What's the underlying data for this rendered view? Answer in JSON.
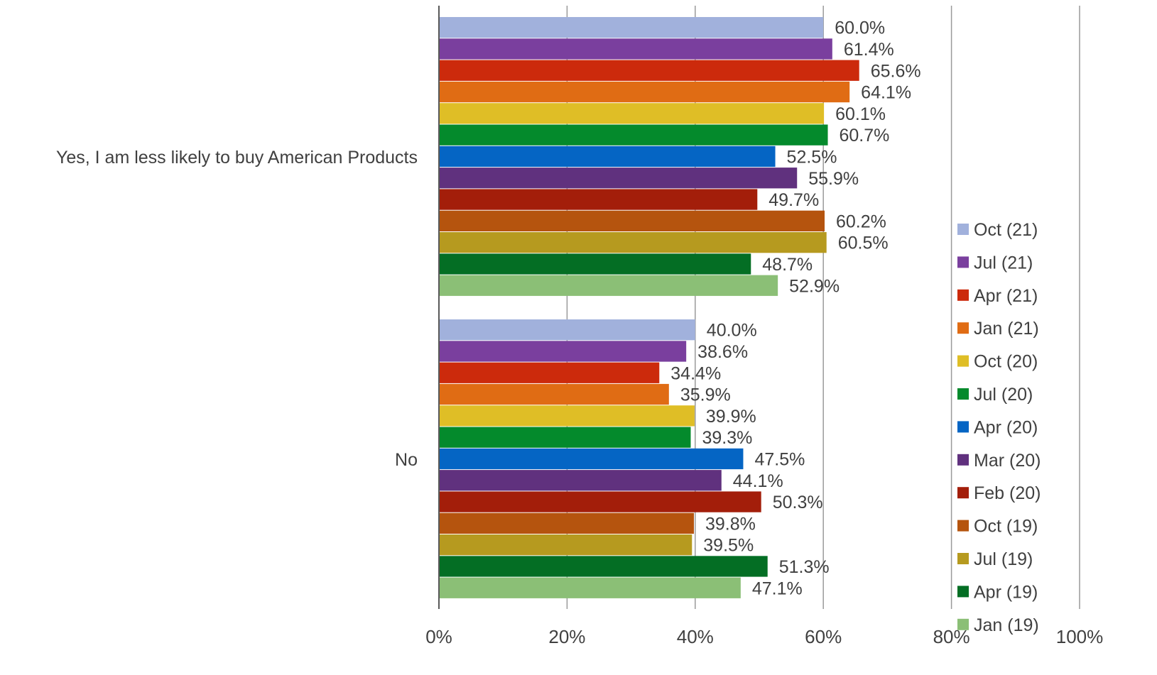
{
  "chart_data": {
    "type": "bar",
    "orientation": "horizontal",
    "categories": [
      "Yes, I am less likely to buy American Products",
      "No"
    ],
    "series": [
      {
        "name": "Oct (21)",
        "color": "#a1b1dc",
        "values": [
          60.0,
          40.0
        ],
        "labels": [
          "60.0%",
          "40.0%"
        ]
      },
      {
        "name": "Jul (21)",
        "color": "#7a3f9e",
        "values": [
          61.4,
          38.6
        ],
        "labels": [
          "61.4%",
          "38.6%"
        ]
      },
      {
        "name": "Apr (21)",
        "color": "#cc2a0c",
        "values": [
          65.6,
          34.4
        ],
        "labels": [
          "65.6%",
          "34.4%"
        ]
      },
      {
        "name": "Jan (21)",
        "color": "#e06c14",
        "values": [
          64.1,
          35.9
        ],
        "labels": [
          "64.1%",
          "35.9%"
        ]
      },
      {
        "name": "Oct (20)",
        "color": "#dfbe26",
        "values": [
          60.1,
          39.9
        ],
        "labels": [
          "60.1%",
          "39.9%"
        ]
      },
      {
        "name": "Jul (20)",
        "color": "#048a2c",
        "values": [
          60.7,
          39.3
        ],
        "labels": [
          "60.7%",
          "39.3%"
        ]
      },
      {
        "name": "Apr (20)",
        "color": "#0565c4",
        "values": [
          52.5,
          47.5
        ],
        "labels": [
          "52.5%",
          "47.5%"
        ]
      },
      {
        "name": "Mar (20)",
        "color": "#60317e",
        "values": [
          55.9,
          44.1
        ],
        "labels": [
          "55.9%",
          "44.1%"
        ]
      },
      {
        "name": "Feb (20)",
        "color": "#a31e0a",
        "values": [
          49.7,
          50.3
        ],
        "labels": [
          "49.7%",
          "50.3%"
        ]
      },
      {
        "name": "Oct (19)",
        "color": "#b5540e",
        "values": [
          60.2,
          39.8
        ],
        "labels": [
          "60.2%",
          "39.8%"
        ]
      },
      {
        "name": "Jul (19)",
        "color": "#b69a1f",
        "values": [
          60.5,
          39.5
        ],
        "labels": [
          "60.5%",
          "39.5%"
        ]
      },
      {
        "name": "Apr (19)",
        "color": "#046e24",
        "values": [
          48.7,
          51.3
        ],
        "labels": [
          "48.7%",
          "51.3%"
        ]
      },
      {
        "name": "Jan (19)",
        "color": "#8bbf76",
        "values": [
          52.9,
          47.1
        ],
        "labels": [
          "52.9%",
          "47.1%"
        ]
      }
    ],
    "xlim": [
      0,
      100
    ],
    "x_ticks": [
      "0%",
      "20%",
      "40%",
      "60%",
      "80%",
      "100%"
    ],
    "grid": true,
    "legend_position": "right"
  }
}
